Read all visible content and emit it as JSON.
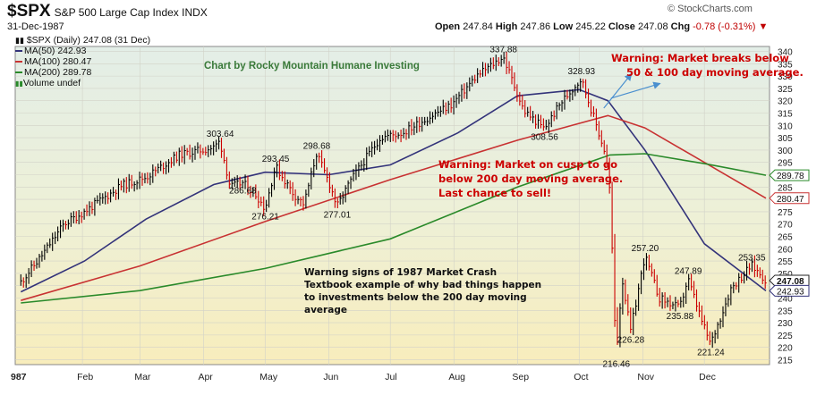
{
  "header": {
    "symbol": "$SPX",
    "description": "S&P 500 Large Cap Index INDX",
    "date": "31-Dec-1987",
    "brand": "© StockCharts.com",
    "ohlc": {
      "open_label": "Open",
      "open": "247.84",
      "high_label": "High",
      "high": "247.86",
      "low_label": "Low",
      "low": "245.22",
      "close_label": "Close",
      "close": "247.08",
      "chg_label": "Chg",
      "chg": "-0.78 (-0.31%)"
    }
  },
  "legend": {
    "price": "$SPX (Daily) 247.08 (31 Dec)",
    "ma50": "MA(50) 242.93",
    "ma100": "MA(100) 280.47",
    "ma200": "MA(200) 289.78",
    "volume": "Volume undef"
  },
  "colors": {
    "price_up": "#000000",
    "price_down": "#cc0000",
    "ma50": "#33337a",
    "ma100": "#c83232",
    "ma200": "#2a8a2a",
    "annotation_red": "#cc0000",
    "arrow_blue": "#4a8fcf",
    "credit_green": "#3a7a3a"
  },
  "chart_data": {
    "type": "line",
    "title": "Chart by Rocky Mountain Humane Investing",
    "x_months": [
      "987",
      "Feb",
      "Mar",
      "Apr",
      "May",
      "Jun",
      "Jul",
      "Aug",
      "Sep",
      "Oct",
      "Nov",
      "Dec"
    ],
    "ylim": [
      213,
      342
    ],
    "y_ticks": [
      215,
      220,
      225,
      230,
      235,
      240,
      245,
      250,
      255,
      260,
      265,
      270,
      275,
      280,
      285,
      290,
      295,
      300,
      305,
      310,
      315,
      320,
      325,
      330,
      335,
      340
    ],
    "y_axis_side": "right",
    "grid": true,
    "price_points": [
      {
        "date": "1987-01-02",
        "close": 246.5
      },
      {
        "date": "1987-01-12",
        "close": 257.0
      },
      {
        "date": "1987-01-23",
        "close": 270.0
      },
      {
        "date": "1987-02-02",
        "close": 275.0
      },
      {
        "date": "1987-02-20",
        "close": 285.5
      },
      {
        "date": "1987-03-04",
        "close": 289.0
      },
      {
        "date": "1987-03-20",
        "close": 298.0
      },
      {
        "date": "1987-04-06",
        "close": 301.0
      },
      {
        "date": "1987-04-09",
        "close": 303.64
      },
      {
        "date": "1987-04-14",
        "close": 285.0
      },
      {
        "date": "1987-04-20",
        "close": 286.68
      },
      {
        "date": "1987-04-27",
        "close": 281.5
      },
      {
        "date": "1987-05-01",
        "close": 276.21
      },
      {
        "date": "1987-05-06",
        "close": 293.45
      },
      {
        "date": "1987-05-15",
        "close": 282.0
      },
      {
        "date": "1987-05-20",
        "close": 278.0
      },
      {
        "date": "1987-05-26",
        "close": 298.68
      },
      {
        "date": "1987-06-02",
        "close": 285.0
      },
      {
        "date": "1987-06-05",
        "close": 277.01
      },
      {
        "date": "1987-06-12",
        "close": 288.0
      },
      {
        "date": "1987-06-26",
        "close": 305.0
      },
      {
        "date": "1987-07-07",
        "close": 307.0
      },
      {
        "date": "1987-07-17",
        "close": 312.0
      },
      {
        "date": "1987-07-31",
        "close": 318.5
      },
      {
        "date": "1987-08-12",
        "close": 330.0
      },
      {
        "date": "1987-08-25",
        "close": 337.88
      },
      {
        "date": "1987-09-04",
        "close": 316.0
      },
      {
        "date": "1987-09-14",
        "close": 308.56
      },
      {
        "date": "1987-09-22",
        "close": 319.0
      },
      {
        "date": "1987-10-02",
        "close": 328.93
      },
      {
        "date": "1987-10-09",
        "close": 311.0
      },
      {
        "date": "1987-10-14",
        "close": 298.0
      },
      {
        "date": "1987-10-16",
        "close": 282.7
      },
      {
        "date": "1987-10-19",
        "close": 216.46
      },
      {
        "date": "1987-10-22",
        "close": 248.0
      },
      {
        "date": "1987-10-26",
        "close": 226.28
      },
      {
        "date": "1987-11-02",
        "close": 257.2
      },
      {
        "date": "1987-11-09",
        "close": 240.0
      },
      {
        "date": "1987-11-19",
        "close": 235.88
      },
      {
        "date": "1987-11-23",
        "close": 247.89
      },
      {
        "date": "1987-11-30",
        "close": 230.0
      },
      {
        "date": "1987-12-04",
        "close": 221.24
      },
      {
        "date": "1987-12-14",
        "close": 244.0
      },
      {
        "date": "1987-12-24",
        "close": 253.35
      },
      {
        "date": "1987-12-31",
        "close": 247.08
      }
    ],
    "series": [
      {
        "name": "MA(50)",
        "values": [
          {
            "date": "1987-01-02",
            "y": 242.5
          },
          {
            "date": "1987-02-02",
            "y": 255.0
          },
          {
            "date": "1987-03-04",
            "y": 272.0
          },
          {
            "date": "1987-04-06",
            "y": 286.0
          },
          {
            "date": "1987-05-01",
            "y": 291.0
          },
          {
            "date": "1987-06-01",
            "y": 290.0
          },
          {
            "date": "1987-07-01",
            "y": 294.0
          },
          {
            "date": "1987-08-03",
            "y": 307.0
          },
          {
            "date": "1987-09-01",
            "y": 322.0
          },
          {
            "date": "1987-10-01",
            "y": 324.5
          },
          {
            "date": "1987-10-15",
            "y": 320.0
          },
          {
            "date": "1987-11-02",
            "y": 300.0
          },
          {
            "date": "1987-12-01",
            "y": 262.0
          },
          {
            "date": "1987-12-31",
            "y": 242.93
          }
        ]
      },
      {
        "name": "MA(100)",
        "values": [
          {
            "date": "1987-01-02",
            "y": 239.0
          },
          {
            "date": "1987-03-01",
            "y": 253.0
          },
          {
            "date": "1987-05-01",
            "y": 271.0
          },
          {
            "date": "1987-07-01",
            "y": 288.0
          },
          {
            "date": "1987-09-01",
            "y": 304.0
          },
          {
            "date": "1987-10-15",
            "y": 314.0
          },
          {
            "date": "1987-11-02",
            "y": 309.0
          },
          {
            "date": "1987-12-01",
            "y": 295.0
          },
          {
            "date": "1987-12-31",
            "y": 280.47
          }
        ]
      },
      {
        "name": "MA(200)",
        "values": [
          {
            "date": "1987-01-02",
            "y": 238.0
          },
          {
            "date": "1987-03-01",
            "y": 243.0
          },
          {
            "date": "1987-05-01",
            "y": 252.0
          },
          {
            "date": "1987-07-01",
            "y": 264.0
          },
          {
            "date": "1987-09-01",
            "y": 285.0
          },
          {
            "date": "1987-10-16",
            "y": 298.0
          },
          {
            "date": "1987-11-02",
            "y": 298.5
          },
          {
            "date": "1987-12-01",
            "y": 294.5
          },
          {
            "date": "1987-12-31",
            "y": 289.78
          }
        ]
      }
    ],
    "value_labels": [
      {
        "text": "303.64",
        "date": "1987-04-09",
        "value": 303.64,
        "pos": "above"
      },
      {
        "text": "286.68",
        "date": "1987-04-20",
        "value": 286.68,
        "pos": "below"
      },
      {
        "text": "293.45",
        "date": "1987-05-06",
        "value": 293.45,
        "pos": "above"
      },
      {
        "text": "276.21",
        "date": "1987-05-01",
        "value": 276.21,
        "pos": "below"
      },
      {
        "text": "298.68",
        "date": "1987-05-26",
        "value": 298.68,
        "pos": "above"
      },
      {
        "text": "277.01",
        "date": "1987-06-05",
        "value": 277.01,
        "pos": "below"
      },
      {
        "text": "337.88",
        "date": "1987-08-25",
        "value": 337.88,
        "pos": "above"
      },
      {
        "text": "308.56",
        "date": "1987-09-14",
        "value": 308.56,
        "pos": "below"
      },
      {
        "text": "328.93",
        "date": "1987-10-02",
        "value": 328.93,
        "pos": "above"
      },
      {
        "text": "257.20",
        "date": "1987-11-02",
        "value": 257.2,
        "pos": "above"
      },
      {
        "text": "226.28",
        "date": "1987-10-26",
        "value": 226.28,
        "pos": "below"
      },
      {
        "text": "216.46",
        "date": "1987-10-19",
        "value": 216.46,
        "pos": "below"
      },
      {
        "text": "247.89",
        "date": "1987-11-23",
        "value": 247.89,
        "pos": "above"
      },
      {
        "text": "235.88",
        "date": "1987-11-19",
        "value": 235.88,
        "pos": "below"
      },
      {
        "text": "221.24",
        "date": "1987-12-04",
        "value": 221.24,
        "pos": "below"
      },
      {
        "text": "253.35",
        "date": "1987-12-24",
        "value": 253.35,
        "pos": "above"
      }
    ],
    "last_value_tags": [
      {
        "text": "289.78",
        "value": 289.78,
        "series": "MA(200)"
      },
      {
        "text": "280.47",
        "value": 280.47,
        "series": "MA(100)"
      },
      {
        "text": "247.08",
        "value": 247.08,
        "series": "price"
      },
      {
        "text": "242.93",
        "value": 242.93,
        "series": "MA(50)"
      }
    ]
  },
  "annotations": {
    "warning_breaks": [
      "Warning: Market breaks below",
      "50 & 100 day moving average."
    ],
    "warning_cusp": [
      "Warning: Market on cusp to go",
      "below 200 day moving average.",
      "Last chance to sell!"
    ],
    "crash_note": [
      "Warning signs of 1987 Market Crash",
      "Textbook example of why bad things happen",
      "to investments below the 200 day moving",
      "average"
    ]
  }
}
